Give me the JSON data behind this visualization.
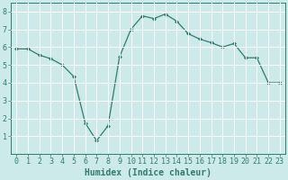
{
  "x": [
    0,
    1,
    2,
    3,
    4,
    5,
    6,
    7,
    8,
    9,
    10,
    11,
    12,
    13,
    14,
    15,
    16,
    17,
    18,
    19,
    20,
    21,
    22,
    23
  ],
  "y": [
    5.9,
    5.9,
    5.55,
    5.35,
    5.0,
    4.35,
    1.75,
    0.75,
    1.6,
    5.45,
    7.0,
    7.75,
    7.6,
    7.85,
    7.45,
    6.75,
    6.45,
    6.25,
    6.0,
    6.2,
    5.4,
    5.4,
    4.0,
    4.0
  ],
  "line_color": "#2e7d6e",
  "marker": "D",
  "marker_size": 2,
  "bg_color": "#cceaea",
  "grid_color": "#ffffff",
  "xlabel": "Humidex (Indice chaleur)",
  "ylim": [
    0,
    8.5
  ],
  "xlim": [
    -0.5,
    23.5
  ],
  "yticks": [
    1,
    2,
    3,
    4,
    5,
    6,
    7,
    8
  ],
  "xticks": [
    0,
    1,
    2,
    3,
    4,
    5,
    6,
    7,
    8,
    9,
    10,
    11,
    12,
    13,
    14,
    15,
    16,
    17,
    18,
    19,
    20,
    21,
    22,
    23
  ],
  "tick_color": "#2e7d6e",
  "label_color": "#2e7d6e",
  "font_size_xlabel": 7,
  "font_size_tick": 6
}
